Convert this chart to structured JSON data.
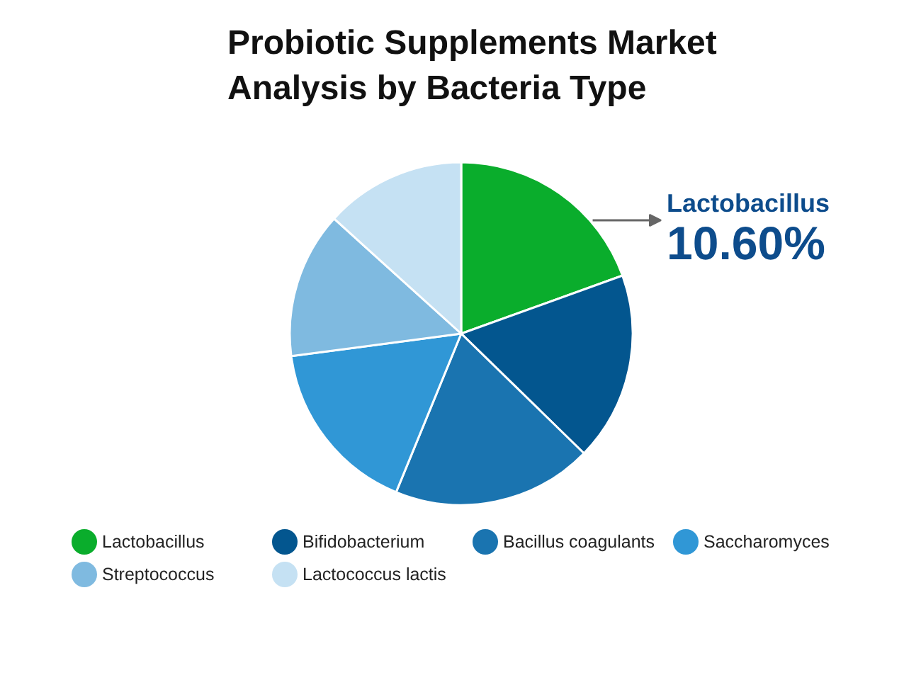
{
  "chart_data": {
    "type": "pie",
    "title": "Probiotic Supplements Market Analysis by Bacteria Type",
    "categories": [
      "Lactobacillus",
      "Bifidobacterium",
      "Bacillus coagulants",
      "Saccharomyces",
      "Streptococcus",
      "Lactococcus lactis"
    ],
    "values": [
      19.5,
      17.8,
      18.9,
      16.7,
      13.8,
      13.3
    ],
    "colors": [
      "#0aad2c",
      "#03568f",
      "#1a74b0",
      "#3097d6",
      "#7fbae0",
      "#c5e1f3"
    ],
    "legend": "bottom",
    "annotations": [
      "Lactobacillus",
      "10.60%"
    ]
  }
}
